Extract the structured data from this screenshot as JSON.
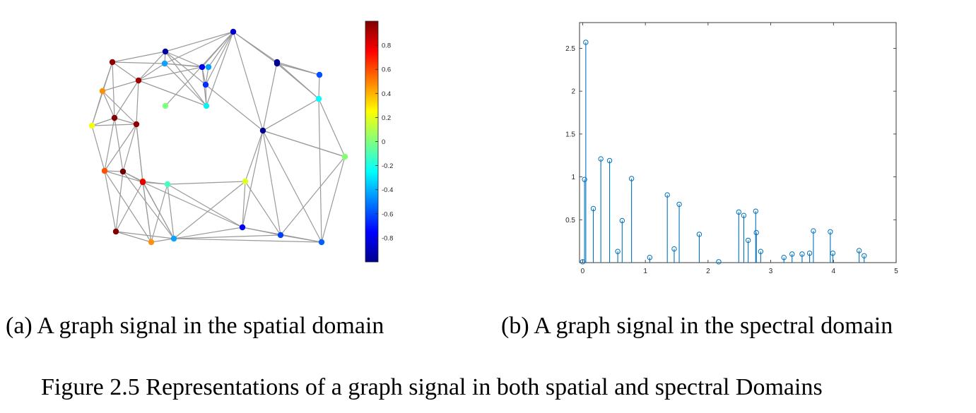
{
  "captions": {
    "subfigure_a": "(a) A graph signal in the spatial domain",
    "subfigure_b": "(b) A graph signal in the spectral domain",
    "figure": "Figure 2.5  Representations of a graph signal in both spatial and spectral Domains"
  },
  "colors": {
    "edge": "#9a9a9a",
    "stem": "#0072BD",
    "axis": "#262626"
  },
  "colorbar": {
    "colormap": "jet",
    "range": [
      -1,
      1
    ],
    "tick_labels": [
      "0.8",
      "0.6",
      "0.4",
      "0.2",
      "0",
      "-0.2",
      "-0.4",
      "-0.6",
      "-0.8"
    ],
    "tick_values": [
      0.8,
      0.6,
      0.4,
      0.2,
      0,
      -0.2,
      -0.4,
      -0.6,
      -0.8
    ]
  },
  "graph": {
    "node_colors": [
      "#00008f",
      "#0000cc",
      "#0000ff",
      "#0030ff",
      "#10f0f0",
      "#80ff80",
      "#00ffff",
      "#00a0ff",
      "#0050ff",
      "#000090",
      "#80ff70",
      "#e0ff20",
      "#0000ff",
      "#0040ff",
      "#0060ff",
      "#900000",
      "#a00000",
      "#ff9000",
      "#f0ff10",
      "#800000",
      "#900000",
      "#ff5000",
      "#700000",
      "#ff3000",
      "#40ffc0",
      "#800000",
      "#e00000",
      "#ff9010",
      "#10a0ff",
      "#000090",
      "#0000a0",
      "#10a0ff"
    ]
  },
  "chart_data": {
    "type": "stem",
    "title": "",
    "xlabel": "",
    "ylabel": "",
    "xlim": [
      -0.05,
      5
    ],
    "ylim": [
      0,
      2.8
    ],
    "x_ticks": [
      0,
      1,
      2,
      3,
      4,
      5
    ],
    "x_tick_labels": [
      "0",
      "1",
      "2",
      "3",
      "4",
      "5"
    ],
    "y_ticks": [
      0.5,
      1,
      1.5,
      2,
      2.5
    ],
    "y_tick_labels": [
      "0.5",
      "1",
      "1.5",
      "2",
      "2.5"
    ],
    "x": [
      0.0,
      0.03,
      0.05,
      0.17,
      0.29,
      0.43,
      0.56,
      0.63,
      0.78,
      1.07,
      1.35,
      1.46,
      1.54,
      1.86,
      2.17,
      2.49,
      2.57,
      2.64,
      2.76,
      2.77,
      2.84,
      3.21,
      3.34,
      3.5,
      3.62,
      3.68,
      3.95,
      3.99,
      4.41,
      4.49
    ],
    "values": [
      0.01,
      0.97,
      2.57,
      0.63,
      1.21,
      1.19,
      0.13,
      0.49,
      0.98,
      0.06,
      0.79,
      0.16,
      0.68,
      0.33,
      0.01,
      0.59,
      0.55,
      0.26,
      0.6,
      0.35,
      0.13,
      0.06,
      0.1,
      0.1,
      0.11,
      0.37,
      0.36,
      0.11,
      0.14,
      0.08
    ]
  }
}
